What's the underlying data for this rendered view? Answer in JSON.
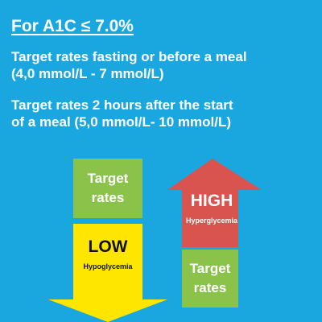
{
  "heading": "For A1C ≤ 7.0%",
  "targets": {
    "fasting": {
      "line1": "Target rates fasting or before a meal",
      "line2": "(4,0 mmol/L - 7 mmol/L)"
    },
    "after_meal": {
      "line1": "Target rates 2 hours after the start",
      "line2": "of a meal (5,0 mmol/L- 10 mmol/L)"
    }
  },
  "diagram": {
    "target_top": {
      "line1": "Target",
      "line2": "rates"
    },
    "low": {
      "label": "LOW",
      "sublabel": "Hypoglycemia"
    },
    "high": {
      "label": "HIGH",
      "sublabel": "Hyperglycemia"
    },
    "target_bottom": {
      "line1": "Target",
      "line2": "rates"
    }
  },
  "colors": {
    "background": "#1aa7e0",
    "target_box": "#8bc34a",
    "high_arrow": "#d9534f",
    "low_arrow": "#ffe600",
    "text": "#ffffff"
  }
}
